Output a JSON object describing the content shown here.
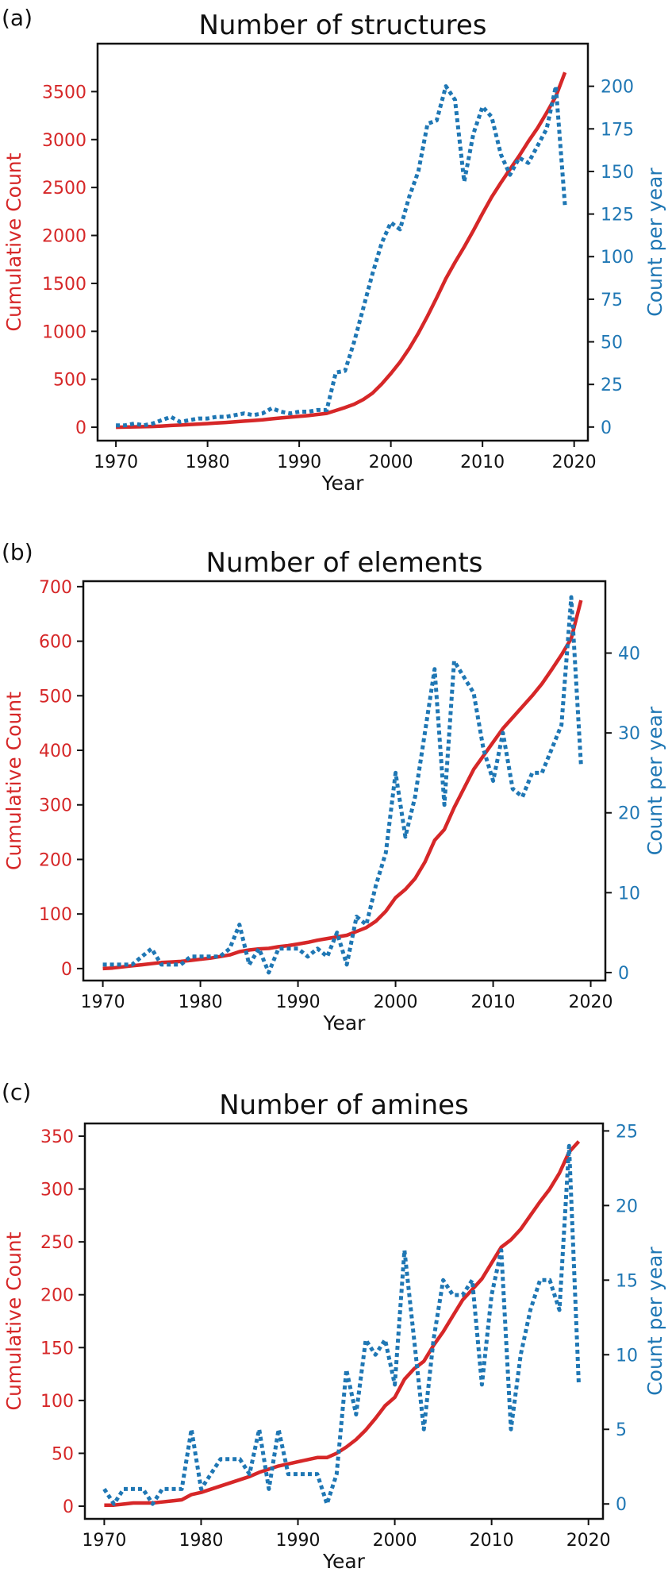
{
  "colors": {
    "cumulative": "#d62728",
    "per_year": "#1f77b4",
    "axes": "#111111"
  },
  "chart_data": [
    {
      "panel_label": "(a)",
      "type": "line",
      "title": "Number of structures",
      "xlabel": "Year",
      "ylabel_left": "Cumulative Count",
      "ylabel_right": "Count per year",
      "xlim": [
        1968,
        2021.5
      ],
      "ylim_left": [
        -140,
        4000
      ],
      "ylim_right": [
        -8,
        225
      ],
      "x_ticks": [
        1970,
        1980,
        1990,
        2000,
        2010,
        2020
      ],
      "y_ticks_left": [
        0,
        500,
        1000,
        1500,
        2000,
        2500,
        3000,
        3500
      ],
      "y_ticks_right": [
        0,
        25,
        50,
        75,
        100,
        125,
        150,
        175,
        200
      ],
      "grid": false,
      "x": [
        1970,
        1971,
        1972,
        1973,
        1974,
        1975,
        1976,
        1977,
        1978,
        1979,
        1980,
        1981,
        1982,
        1983,
        1984,
        1985,
        1986,
        1987,
        1988,
        1989,
        1990,
        1991,
        1992,
        1993,
        1994,
        1995,
        1996,
        1997,
        1998,
        1999,
        2000,
        2001,
        2002,
        2003,
        2004,
        2005,
        2006,
        2007,
        2008,
        2009,
        2010,
        2011,
        2012,
        2013,
        2014,
        2015,
        2016,
        2017,
        2018,
        2019
      ],
      "series": [
        {
          "name": "Cumulative Count",
          "axis": "left",
          "style": "solid",
          "values": [
            0,
            2,
            4,
            6,
            8,
            12,
            18,
            22,
            28,
            33,
            38,
            44,
            50,
            57,
            64,
            70,
            78,
            88,
            97,
            105,
            113,
            122,
            133,
            145,
            175,
            205,
            240,
            290,
            355,
            450,
            560,
            680,
            820,
            980,
            1160,
            1350,
            1550,
            1720,
            1880,
            2050,
            2230,
            2400,
            2550,
            2690,
            2830,
            2980,
            3120,
            3280,
            3450,
            3700
          ]
        },
        {
          "name": "Count per year",
          "axis": "right",
          "style": "dotted",
          "values": [
            1,
            1,
            2,
            1,
            2,
            4,
            6,
            3,
            4,
            5,
            5,
            6,
            6,
            7,
            8,
            7,
            8,
            11,
            9,
            8,
            9,
            9,
            10,
            10,
            32,
            33,
            50,
            70,
            90,
            108,
            120,
            116,
            135,
            150,
            178,
            180,
            200,
            192,
            144,
            172,
            188,
            182,
            160,
            148,
            158,
            155,
            165,
            175,
            200,
            130
          ]
        }
      ]
    },
    {
      "panel_label": "(b)",
      "type": "line",
      "title": "Number of elements",
      "xlabel": "Year",
      "ylabel_left": "Cumulative Count",
      "ylabel_right": "Count per year",
      "xlim": [
        1968,
        2021.5
      ],
      "ylim_left": [
        -22,
        710
      ],
      "ylim_right": [
        -1,
        49
      ],
      "x_ticks": [
        1970,
        1980,
        1990,
        2000,
        2010,
        2020
      ],
      "y_ticks_left": [
        0,
        100,
        200,
        300,
        400,
        500,
        600,
        700
      ],
      "y_ticks_right": [
        0,
        10,
        20,
        30,
        40
      ],
      "grid": false,
      "x": [
        1970,
        1971,
        1972,
        1973,
        1974,
        1975,
        1976,
        1977,
        1978,
        1979,
        1980,
        1981,
        1982,
        1983,
        1984,
        1985,
        1986,
        1987,
        1988,
        1989,
        1990,
        1991,
        1992,
        1993,
        1994,
        1995,
        1996,
        1997,
        1998,
        1999,
        2000,
        2001,
        2002,
        2003,
        2004,
        2005,
        2006,
        2007,
        2008,
        2009,
        2010,
        2011,
        2012,
        2013,
        2014,
        2015,
        2016,
        2017,
        2018,
        2019
      ],
      "series": [
        {
          "name": "Cumulative Count",
          "axis": "left",
          "style": "solid",
          "values": [
            0,
            1,
            3,
            5,
            7,
            9,
            11,
            12,
            13,
            15,
            17,
            19,
            22,
            25,
            31,
            34,
            36,
            37,
            40,
            42,
            45,
            48,
            52,
            55,
            58,
            61,
            68,
            75,
            87,
            105,
            130,
            145,
            165,
            195,
            235,
            255,
            295,
            330,
            365,
            390,
            415,
            440,
            460,
            480,
            500,
            522,
            548,
            575,
            605,
            675
          ]
        },
        {
          "name": "Count per year",
          "axis": "right",
          "style": "dotted",
          "values": [
            1,
            1,
            1,
            1,
            2,
            3,
            1,
            1,
            1,
            2,
            2,
            2,
            2,
            3,
            6,
            1,
            3,
            0,
            3,
            3,
            3,
            2,
            3,
            2,
            5,
            1,
            7,
            6,
            11,
            15,
            25,
            17,
            22,
            30,
            38,
            21,
            39,
            37,
            35,
            28,
            24,
            30,
            23,
            22,
            25,
            25,
            28,
            31,
            47,
            26
          ]
        }
      ]
    },
    {
      "panel_label": "(c)",
      "type": "line",
      "title": "Number of amines",
      "xlabel": "Year",
      "ylabel_left": "Cumulative Count",
      "ylabel_right": "Count per year",
      "xlim": [
        1968,
        2021.5
      ],
      "ylim_left": [
        -12,
        362
      ],
      "ylim_right": [
        -1,
        25.5
      ],
      "x_ticks": [
        1970,
        1980,
        1990,
        2000,
        2010,
        2020
      ],
      "y_ticks_left": [
        0,
        50,
        100,
        150,
        200,
        250,
        300,
        350
      ],
      "y_ticks_right": [
        0,
        5,
        10,
        15,
        20,
        25
      ],
      "grid": false,
      "x": [
        1970,
        1971,
        1972,
        1973,
        1974,
        1975,
        1976,
        1977,
        1978,
        1979,
        1980,
        1981,
        1982,
        1983,
        1984,
        1985,
        1986,
        1987,
        1988,
        1989,
        1990,
        1991,
        1992,
        1993,
        1994,
        1995,
        1996,
        1997,
        1998,
        1999,
        2000,
        2001,
        2002,
        2003,
        2004,
        2005,
        2006,
        2007,
        2008,
        2009,
        2010,
        2011,
        2012,
        2013,
        2014,
        2015,
        2016,
        2017,
        2018,
        2019
      ],
      "series": [
        {
          "name": "Cumulative Count",
          "axis": "left",
          "style": "solid",
          "values": [
            1,
            1,
            2,
            3,
            3,
            3,
            4,
            5,
            6,
            11,
            13,
            16,
            19,
            22,
            25,
            28,
            32,
            35,
            38,
            40,
            42,
            44,
            46,
            46,
            50,
            56,
            63,
            72,
            83,
            95,
            103,
            120,
            130,
            137,
            152,
            165,
            180,
            195,
            205,
            215,
            230,
            245,
            252,
            262,
            275,
            288,
            300,
            315,
            335,
            345
          ]
        },
        {
          "name": "Count per year",
          "axis": "right",
          "style": "dotted",
          "values": [
            1,
            0,
            1,
            1,
            1,
            0,
            1,
            1,
            1,
            5,
            1,
            2,
            3,
            3,
            3,
            2,
            5,
            1,
            5,
            2,
            2,
            2,
            2,
            0,
            2,
            9,
            6,
            11,
            10,
            11,
            8,
            17,
            11,
            5,
            11,
            15,
            14,
            14,
            15,
            8,
            14,
            17,
            5,
            10,
            13,
            15,
            15,
            13,
            24,
            8
          ]
        }
      ]
    }
  ]
}
